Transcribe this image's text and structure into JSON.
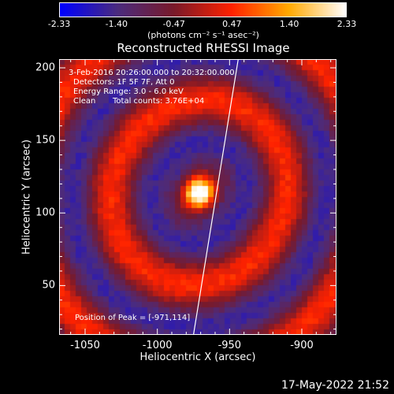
{
  "colorbar": {
    "tick_labels": [
      "-2.33",
      "-1.40",
      "-0.47",
      "0.47",
      "1.40",
      "2.33"
    ],
    "tick_values": [
      -2.33,
      -1.4,
      -0.47,
      0.47,
      1.4,
      2.33
    ],
    "units_text": "(photons cm⁻² s⁻¹ asec⁻²)",
    "colormap": [
      "#0000ff",
      "#4b2c7f",
      "#7a1a2a",
      "#ff2200",
      "#ffaa00",
      "#ffffff"
    ]
  },
  "title": "Reconstructed RHESSI Image",
  "annotations": {
    "time_range": "3-Feb-2016 20:26:00.000 to 20:32:00.000",
    "detectors": "Detectors: 1F 5F 7F, Att 0",
    "energy": "Energy Range: 3.0 - 6.0 keV",
    "algorithm": "Clean",
    "counts": "Total counts: 3.76E+04",
    "peak": "Position of Peak = [-971,114]"
  },
  "axes": {
    "xlabel": "Heliocentric X (arcsec)",
    "ylabel": "Heliocentric Y (arcsec)",
    "x_tick_labels": [
      "-1050",
      "-1000",
      "-950",
      "-900"
    ],
    "x_tick_values": [
      -1050,
      -1000,
      -950,
      -900
    ],
    "y_tick_labels": [
      "50",
      "100",
      "150",
      "200"
    ],
    "y_tick_values": [
      50,
      100,
      150,
      200
    ],
    "xlim": [
      -1068,
      -876
    ],
    "ylim": [
      16,
      206
    ]
  },
  "image": {
    "peak_position": [
      -971,
      114
    ],
    "limb_line": [
      [
        -975,
        16
      ],
      [
        -944,
        206
      ]
    ]
  },
  "timestamp": "17-May-2022 21:52"
}
